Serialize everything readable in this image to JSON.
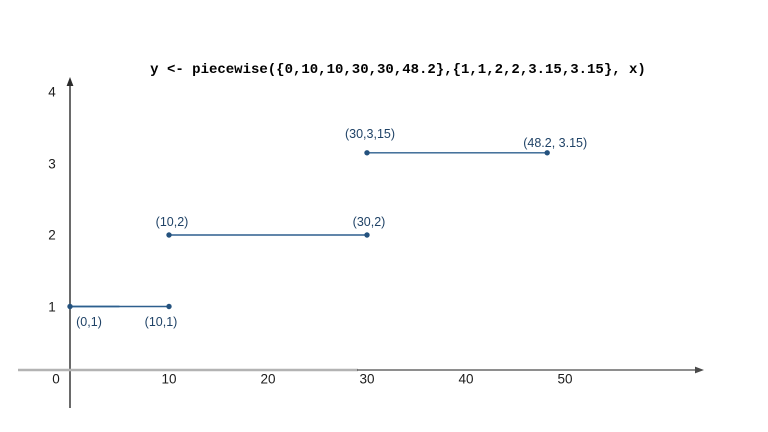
{
  "title": "y <- piecewise({0,10,10,30,30,48.2},{1,1,2,2,3.15,3.15}, x)",
  "colors": {
    "series_line": "#2d5f8e",
    "series_dot": "#24527e",
    "series_light": "#b9cdde",
    "label_text": "#1f4266",
    "axis_gray": "#b3b3b3",
    "axis_thin": "#4a4a4a",
    "axis_y": "#2b2b2b",
    "tick_text": "#1c1c1c"
  },
  "chart_data": {
    "type": "line",
    "title": "y <- piecewise({0,10,10,30,30,48.2},{1,1,2,2,3.15,3.15}, x)",
    "xlabel": "",
    "ylabel": "",
    "grid": false,
    "legend": "none",
    "x_ticks": [
      0,
      10,
      20,
      30,
      40,
      50
    ],
    "y_ticks": [
      1,
      2,
      3,
      4
    ],
    "xlim": [
      0,
      64
    ],
    "ylim": [
      0,
      4.2
    ],
    "segments": [
      {
        "points": [
          [
            0,
            1
          ],
          [
            10,
            1
          ]
        ],
        "light_overlay_to_x": 5,
        "labels": [
          {
            "text": "(0,1)",
            "dx": 19,
            "dy": 15
          },
          {
            "text": "(10,1)",
            "dx": -8,
            "dy": 15
          }
        ]
      },
      {
        "points": [
          [
            10,
            2
          ],
          [
            30,
            2
          ]
        ],
        "labels": [
          {
            "text": "(10,2)",
            "dx": 3,
            "dy": -13
          },
          {
            "text": "(30,2)",
            "dx": 2,
            "dy": -13
          }
        ]
      },
      {
        "points": [
          [
            30,
            3.15
          ],
          [
            48.2,
            3.15
          ]
        ],
        "labels": [
          {
            "text": "(30,3,15)",
            "dx": 3,
            "dy": -19
          },
          {
            "text": "(48.2, 3.15)",
            "dx": 8,
            "dy": -10
          }
        ]
      }
    ]
  }
}
